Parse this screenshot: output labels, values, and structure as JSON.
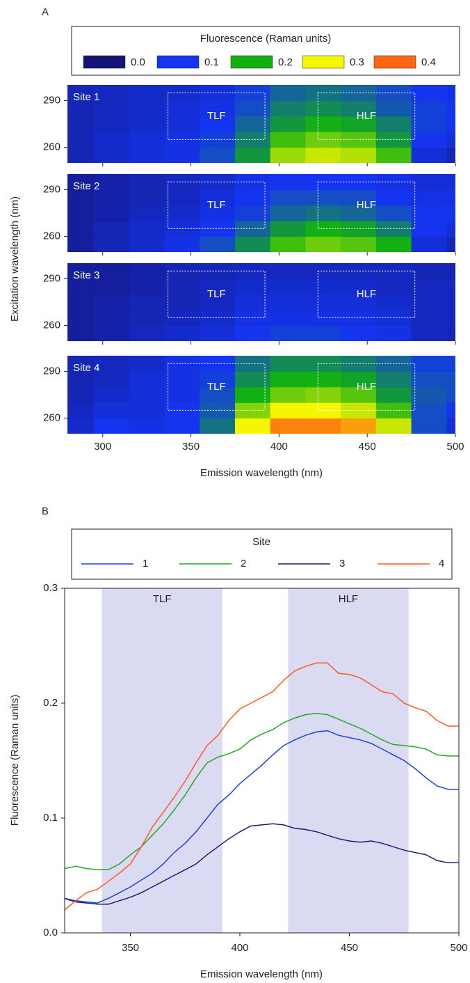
{
  "chart_data": [
    {
      "type": "heatmap",
      "panel_label": "A",
      "x_label": "Emission wavelength (nm)",
      "y_label": "Excitation wavelength (nm)",
      "xlim": [
        280,
        500
      ],
      "xticks": [
        300,
        350,
        400,
        450,
        500
      ],
      "ylim": [
        250,
        300
      ],
      "yticks": [
        260,
        290
      ],
      "x": [
        285,
        305,
        325,
        345,
        365,
        385,
        405,
        425,
        445,
        465,
        485,
        505
      ],
      "y": [
        255,
        265,
        275,
        285,
        295
      ],
      "colorbar": {
        "title": "Fluorescence (Raman units)",
        "ticks": [
          {
            "value": 0,
            "label": "0.0"
          },
          0.1,
          0.2,
          0.3,
          0.4
        ],
        "colors": [
          "#151578",
          "#1434f0",
          "#12b012",
          "#f6f600",
          "#ff6412"
        ]
      },
      "regions": [
        {
          "label": "TLF",
          "x": [
            337,
            392
          ],
          "y": [
            265,
            295
          ]
        },
        {
          "label": "HLF",
          "x": [
            422,
            477
          ],
          "y": [
            265,
            295
          ]
        }
      ],
      "series": [
        {
          "name": "Site 1",
          "values": [
            [
              0.05,
              0.07,
              0.08,
              0.09,
              0.12,
              0.18,
              0.26,
              0.28,
              0.27,
              0.22,
              0.08,
              0.05
            ],
            [
              0.05,
              0.07,
              0.08,
              0.09,
              0.11,
              0.16,
              0.22,
              0.24,
              0.23,
              0.18,
              0.1,
              0.08
            ],
            [
              0.05,
              0.06,
              0.07,
              0.08,
              0.1,
              0.14,
              0.18,
              0.2,
              0.19,
              0.16,
              0.11,
              0.1
            ],
            [
              0.05,
              0.06,
              0.07,
              0.08,
              0.09,
              0.12,
              0.16,
              0.17,
              0.16,
              0.13,
              0.11,
              0.1
            ],
            [
              0.05,
              0.06,
              0.07,
              0.07,
              0.08,
              0.11,
              0.14,
              0.15,
              0.14,
              0.12,
              0.1,
              0.09
            ]
          ]
        },
        {
          "name": "Site 2",
          "values": [
            [
              0.03,
              0.05,
              0.07,
              0.09,
              0.12,
              0.17,
              0.22,
              0.24,
              0.23,
              0.2,
              0.08,
              0.05
            ],
            [
              0.03,
              0.05,
              0.07,
              0.08,
              0.1,
              0.14,
              0.18,
              0.2,
              0.19,
              0.16,
              0.1,
              0.08
            ],
            [
              0.03,
              0.04,
              0.06,
              0.07,
              0.09,
              0.11,
              0.14,
              0.15,
              0.14,
              0.12,
              0.1,
              0.1
            ],
            [
              0.03,
              0.04,
              0.05,
              0.06,
              0.08,
              0.1,
              0.12,
              0.12,
              0.12,
              0.1,
              0.09,
              0.09
            ],
            [
              0.03,
              0.04,
              0.05,
              0.06,
              0.07,
              0.09,
              0.1,
              0.1,
              0.1,
              0.09,
              0.08,
              0.08
            ]
          ]
        },
        {
          "name": "Site 3",
          "values": [
            [
              0.03,
              0.04,
              0.06,
              0.07,
              0.08,
              0.1,
              0.11,
              0.11,
              0.1,
              0.09,
              0.06,
              0.05
            ],
            [
              0.03,
              0.04,
              0.05,
              0.06,
              0.07,
              0.09,
              0.09,
              0.09,
              0.09,
              0.08,
              0.06,
              0.06
            ],
            [
              0.03,
              0.04,
              0.05,
              0.05,
              0.06,
              0.08,
              0.08,
              0.08,
              0.08,
              0.07,
              0.06,
              0.06
            ],
            [
              0.03,
              0.03,
              0.04,
              0.05,
              0.06,
              0.07,
              0.07,
              0.07,
              0.07,
              0.06,
              0.06,
              0.06
            ],
            [
              0.03,
              0.03,
              0.04,
              0.05,
              0.05,
              0.06,
              0.06,
              0.06,
              0.06,
              0.06,
              0.05,
              0.05
            ]
          ]
        },
        {
          "name": "Site 4",
          "values": [
            [
              0.07,
              0.1,
              0.09,
              0.1,
              0.15,
              0.3,
              0.38,
              0.38,
              0.36,
              0.28,
              0.12,
              0.08
            ],
            [
              0.06,
              0.08,
              0.08,
              0.1,
              0.13,
              0.25,
              0.3,
              0.3,
              0.28,
              0.22,
              0.12,
              0.1
            ],
            [
              0.05,
              0.07,
              0.08,
              0.09,
              0.12,
              0.2,
              0.24,
              0.25,
              0.23,
              0.18,
              0.13,
              0.12
            ],
            [
              0.05,
              0.06,
              0.08,
              0.09,
              0.11,
              0.17,
              0.2,
              0.2,
              0.19,
              0.16,
              0.12,
              0.12
            ],
            [
              0.05,
              0.06,
              0.07,
              0.09,
              0.1,
              0.15,
              0.17,
              0.17,
              0.16,
              0.14,
              0.11,
              0.11
            ]
          ]
        }
      ]
    },
    {
      "type": "line",
      "panel_label": "B",
      "legend_title": "Site",
      "x_label": "Emission wavelength (nm)",
      "y_label": "Fluorescence (Raman units)",
      "xlim": [
        320,
        500
      ],
      "xticks": [
        350,
        400,
        450,
        500
      ],
      "ylim": [
        0,
        0.3
      ],
      "yticks": [
        {
          "value": 0,
          "label": "0.0"
        },
        0.1,
        0.2,
        0.3
      ],
      "regions": [
        {
          "label": "TLF",
          "x": [
            337,
            392
          ]
        },
        {
          "label": "HLF",
          "x": [
            422,
            477
          ]
        }
      ],
      "region_color": "#dadaf2",
      "x": [
        320,
        325,
        330,
        335,
        340,
        345,
        350,
        355,
        360,
        365,
        370,
        375,
        380,
        385,
        390,
        395,
        400,
        405,
        410,
        415,
        420,
        425,
        430,
        435,
        440,
        445,
        450,
        455,
        460,
        465,
        470,
        475,
        480,
        485,
        490,
        495,
        500
      ],
      "series": [
        {
          "name": "1",
          "color": "#1f3fe0",
          "values": [
            0.03,
            0.028,
            0.027,
            0.026,
            0.03,
            0.035,
            0.04,
            0.046,
            0.052,
            0.06,
            0.07,
            0.078,
            0.088,
            0.1,
            0.112,
            0.12,
            0.13,
            0.138,
            0.146,
            0.155,
            0.163,
            0.168,
            0.172,
            0.175,
            0.176,
            0.172,
            0.17,
            0.168,
            0.165,
            0.16,
            0.155,
            0.15,
            0.143,
            0.135,
            0.128,
            0.125,
            0.125
          ]
        },
        {
          "name": "2",
          "color": "#22aa22",
          "values": [
            0.056,
            0.058,
            0.056,
            0.055,
            0.055,
            0.06,
            0.068,
            0.075,
            0.085,
            0.095,
            0.107,
            0.12,
            0.135,
            0.148,
            0.153,
            0.156,
            0.16,
            0.168,
            0.173,
            0.177,
            0.183,
            0.187,
            0.19,
            0.191,
            0.19,
            0.186,
            0.182,
            0.178,
            0.173,
            0.168,
            0.164,
            0.163,
            0.162,
            0.16,
            0.155,
            0.154,
            0.154
          ]
        },
        {
          "name": "3",
          "color": "#1a1a7a",
          "values": [
            0.03,
            0.027,
            0.026,
            0.025,
            0.025,
            0.028,
            0.031,
            0.035,
            0.04,
            0.045,
            0.05,
            0.055,
            0.06,
            0.068,
            0.075,
            0.082,
            0.088,
            0.093,
            0.094,
            0.095,
            0.094,
            0.091,
            0.09,
            0.088,
            0.085,
            0.082,
            0.08,
            0.079,
            0.08,
            0.078,
            0.075,
            0.072,
            0.07,
            0.068,
            0.063,
            0.061,
            0.061
          ]
        },
        {
          "name": "4",
          "color": "#ff5a1f",
          "values": [
            0.02,
            0.028,
            0.035,
            0.038,
            0.045,
            0.052,
            0.06,
            0.075,
            0.092,
            0.105,
            0.118,
            0.132,
            0.148,
            0.163,
            0.172,
            0.185,
            0.195,
            0.2,
            0.205,
            0.21,
            0.22,
            0.228,
            0.232,
            0.235,
            0.235,
            0.226,
            0.225,
            0.222,
            0.216,
            0.21,
            0.208,
            0.2,
            0.196,
            0.193,
            0.185,
            0.18,
            0.18
          ]
        }
      ]
    }
  ]
}
